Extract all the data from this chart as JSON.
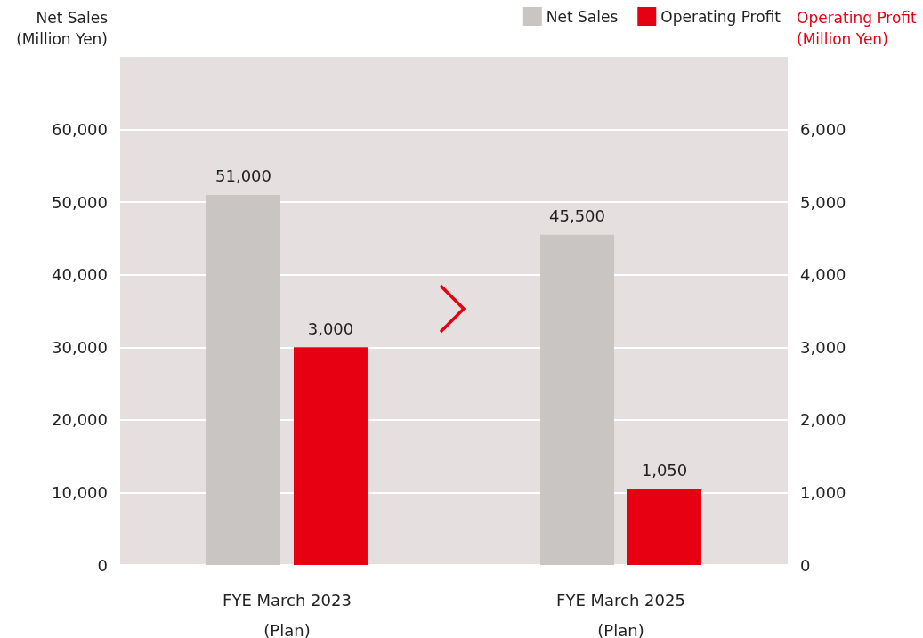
{
  "chart_data": {
    "type": "bar",
    "categories": [
      "FYE March 2023\n(Plan)",
      "FYE March 2025\n(Plan)"
    ],
    "series": [
      {
        "name": "Net Sales",
        "color": "#c9c5c2",
        "values": [
          51000,
          45500
        ],
        "value_labels": [
          "51,000",
          "45,500"
        ]
      },
      {
        "name": "Operating Profit",
        "color": "#e60012",
        "values": [
          3000,
          1050
        ],
        "value_labels": [
          "3,000",
          "1,050"
        ],
        "axis": "y2"
      }
    ],
    "ylabel": "Net Sales\n(Million Yen)",
    "y2label": "Operating Profit\n(Million Yen)",
    "ylim": [
      0,
      70000
    ],
    "yticks": [
      0,
      {
        "value": 10000,
        "label": "10,000"
      },
      {
        "value": 20000,
        "label": "20,000"
      },
      {
        "value": 30000,
        "label": "30,000"
      },
      {
        "value": 40000,
        "label": "40,000"
      },
      {
        "value": 50000,
        "label": "50,000"
      },
      {
        "value": 60000,
        "label": "60,000"
      }
    ],
    "y2lim": [
      0,
      7000
    ],
    "y2ticks": [
      0,
      {
        "value": 1000,
        "label": "1,000"
      },
      {
        "value": 2000,
        "label": "2,000"
      },
      {
        "value": 3000,
        "label": "3,000"
      },
      {
        "value": 4000,
        "label": "4,000"
      },
      {
        "value": 5000,
        "label": "5,000"
      },
      {
        "value": 6000,
        "label": "6,000"
      }
    ],
    "grid": "y",
    "legend": "top right"
  }
}
